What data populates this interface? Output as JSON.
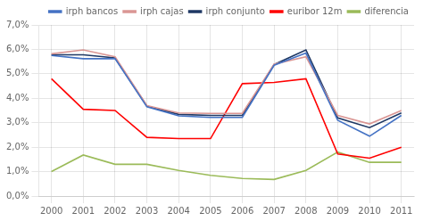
{
  "chart_data": {
    "type": "line",
    "x": [
      2000,
      2001,
      2002,
      2003,
      2004,
      2005,
      2006,
      2007,
      2008,
      2009,
      2010,
      2011
    ],
    "series": [
      {
        "name": "irph bancos",
        "color": "#4472C4",
        "values": [
          5.75,
          5.62,
          5.62,
          3.65,
          3.28,
          3.22,
          3.22,
          5.35,
          5.85,
          3.1,
          2.45,
          3.3
        ]
      },
      {
        "name": "irph cajas",
        "color": "#DA9694",
        "values": [
          5.82,
          5.98,
          5.7,
          3.7,
          3.4,
          3.38,
          3.38,
          5.4,
          5.7,
          3.3,
          2.95,
          3.5
        ]
      },
      {
        "name": "irph conjunto",
        "color": "#1F3864",
        "values": [
          5.78,
          5.78,
          5.65,
          3.68,
          3.34,
          3.3,
          3.3,
          5.38,
          5.98,
          3.2,
          2.8,
          3.4
        ]
      },
      {
        "name": "euribor 12m",
        "color": "#FF0000",
        "values": [
          4.8,
          3.55,
          3.5,
          2.4,
          2.35,
          2.35,
          4.6,
          4.65,
          4.8,
          1.72,
          1.55,
          2.0
        ]
      },
      {
        "name": "diferencia",
        "color": "#9BBB59",
        "values": [
          1.0,
          1.68,
          1.3,
          1.3,
          1.05,
          0.85,
          0.72,
          0.68,
          1.05,
          1.8,
          1.38,
          1.38
        ]
      }
    ],
    "xlim": [
      1999.6,
      2011.4
    ],
    "xticks": [
      2000,
      2001,
      2002,
      2003,
      2004,
      2005,
      2006,
      2007,
      2008,
      2009,
      2010,
      2011
    ],
    "ylim": [
      0.0,
      7.0
    ],
    "yticks": [
      {
        "value": 0.0,
        "label": "0,0%"
      },
      {
        "value": 1.0,
        "label": "1,0%"
      },
      {
        "value": 2.0,
        "label": "2,0%"
      },
      {
        "value": 3.0,
        "label": "3,0%"
      },
      {
        "value": 4.0,
        "label": "4,0%"
      },
      {
        "value": 5.0,
        "label": "5,0%"
      },
      {
        "value": 6.0,
        "label": "6,0%"
      },
      {
        "value": 7.0,
        "label": "7,0%"
      }
    ],
    "grid": true,
    "legend": "upper right"
  }
}
